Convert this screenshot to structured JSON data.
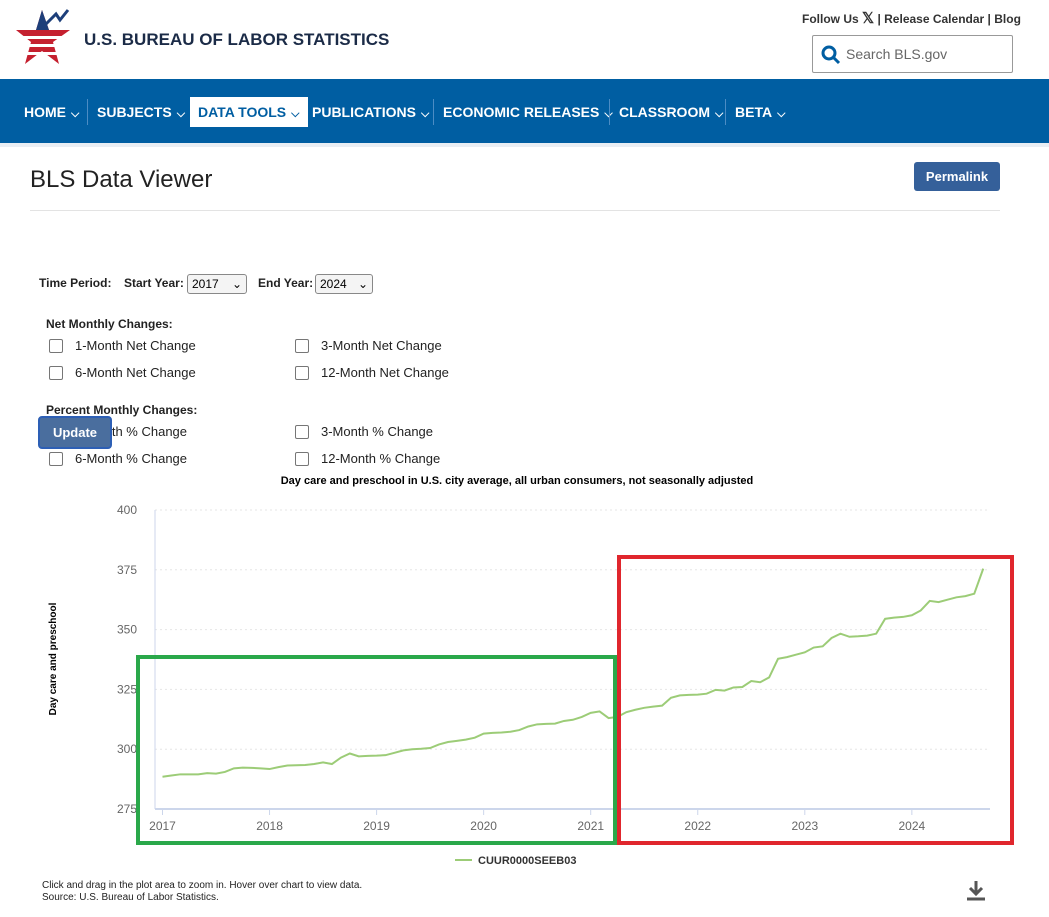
{
  "header": {
    "agency": "U.S. BUREAU OF LABOR STATISTICS",
    "follow": "Follow Us",
    "release": "Release Calendar",
    "blog": "Blog",
    "search": "Search BLS.gov"
  },
  "nav": [
    "HOME",
    "SUBJECTS",
    "DATA TOOLS",
    "PUBLICATIONS",
    "ECONOMIC RELEASES",
    "CLASSROOM",
    "BETA"
  ],
  "page": {
    "title": "BLS Data Viewer",
    "permalink": "Permalink",
    "time_period": "Time Period:",
    "start_label": "Start Year:",
    "start_value": "2017",
    "end_label": "End Year:",
    "end_value": "2024",
    "net_heading": "Net Monthly Changes:",
    "net_options": [
      "1-Month Net Change",
      "3-Month Net Change",
      "6-Month Net Change",
      "12-Month Net Change"
    ],
    "pct_heading": "Percent Monthly Changes:",
    "pct_options": [
      "1-Month % Change",
      "3-Month % Change",
      "6-Month % Change",
      "12-Month % Change"
    ],
    "update": "Update",
    "notes": [
      "Click and drag in the plot area to zoom in. Hover over chart to view data.",
      "Source: U.S. Bureau of Labor Statistics."
    ]
  },
  "chart_data": {
    "type": "line",
    "title": "Day care and preschool in U.S. city average, all urban consumers, not seasonally adjusted",
    "y_label": "Day care and preschool",
    "x": [
      2017,
      2017.083,
      2017.167,
      2017.25,
      2017.333,
      2017.417,
      2017.5,
      2017.583,
      2017.667,
      2017.75,
      2017.833,
      2017.917,
      2018,
      2018.083,
      2018.167,
      2018.25,
      2018.333,
      2018.417,
      2018.5,
      2018.583,
      2018.667,
      2018.75,
      2018.833,
      2018.917,
      2019,
      2019.083,
      2019.167,
      2019.25,
      2019.333,
      2019.417,
      2019.5,
      2019.583,
      2019.667,
      2019.75,
      2019.833,
      2019.917,
      2020,
      2020.083,
      2020.167,
      2020.25,
      2020.333,
      2020.417,
      2020.5,
      2020.583,
      2020.667,
      2020.75,
      2020.833,
      2020.917,
      2021,
      2021.083,
      2021.167,
      2021.25,
      2021.333,
      2021.417,
      2021.5,
      2021.583,
      2021.667,
      2021.75,
      2021.833,
      2021.917,
      2022,
      2022.083,
      2022.167,
      2022.25,
      2022.333,
      2022.417,
      2022.5,
      2022.583,
      2022.667,
      2022.75,
      2022.833,
      2022.917,
      2023,
      2023.083,
      2023.167,
      2023.25,
      2023.333,
      2023.417,
      2023.5,
      2023.583,
      2023.667,
      2023.75,
      2023.833,
      2023.917,
      2024,
      2024.083,
      2024.167,
      2024.25,
      2024.333,
      2024.417,
      2024.5,
      2024.583,
      2024.667
    ],
    "series": [
      {
        "name": "CUUR0000SEEB03",
        "color": "#9ccc77",
        "values": [
          288.5,
          289,
          289.5,
          289.5,
          289.5,
          290,
          289.8,
          290.5,
          292,
          292.3,
          292.2,
          292,
          291.7,
          292.5,
          293.2,
          293.3,
          293.4,
          293.8,
          294.5,
          293.8,
          296.5,
          298.2,
          297,
          297.2,
          297.3,
          297.5,
          298.5,
          299.5,
          300,
          300.2,
          300.5,
          302,
          303,
          303.5,
          304,
          304.8,
          306.5,
          306.8,
          307,
          307.3,
          308,
          309.5,
          310.4,
          310.6,
          310.7,
          311.8,
          312.3,
          313.5,
          315.2,
          315.8,
          313,
          313.5,
          315.5,
          316.5,
          317.3,
          317.8,
          318.2,
          321.5,
          322.5,
          322.7,
          322.8,
          323.2,
          324.8,
          324.5,
          325.8,
          326,
          328.5,
          328,
          330,
          337.8,
          338.5,
          339.5,
          340.5,
          342.5,
          343,
          346.5,
          348.3,
          347,
          347.2,
          347.5,
          348.3,
          354.5,
          355,
          355.3,
          356,
          358,
          362,
          361.5,
          362.5,
          363.5,
          364,
          365,
          375.5
        ]
      }
    ],
    "xlim": [
      2016.93,
      2024.73
    ],
    "xticks": [
      2017,
      2018,
      2019,
      2020,
      2021,
      2022,
      2023,
      2024
    ],
    "ylim": [
      275,
      400
    ],
    "yticks": [
      275,
      300,
      325,
      350,
      375,
      400
    ],
    "grid": true
  }
}
